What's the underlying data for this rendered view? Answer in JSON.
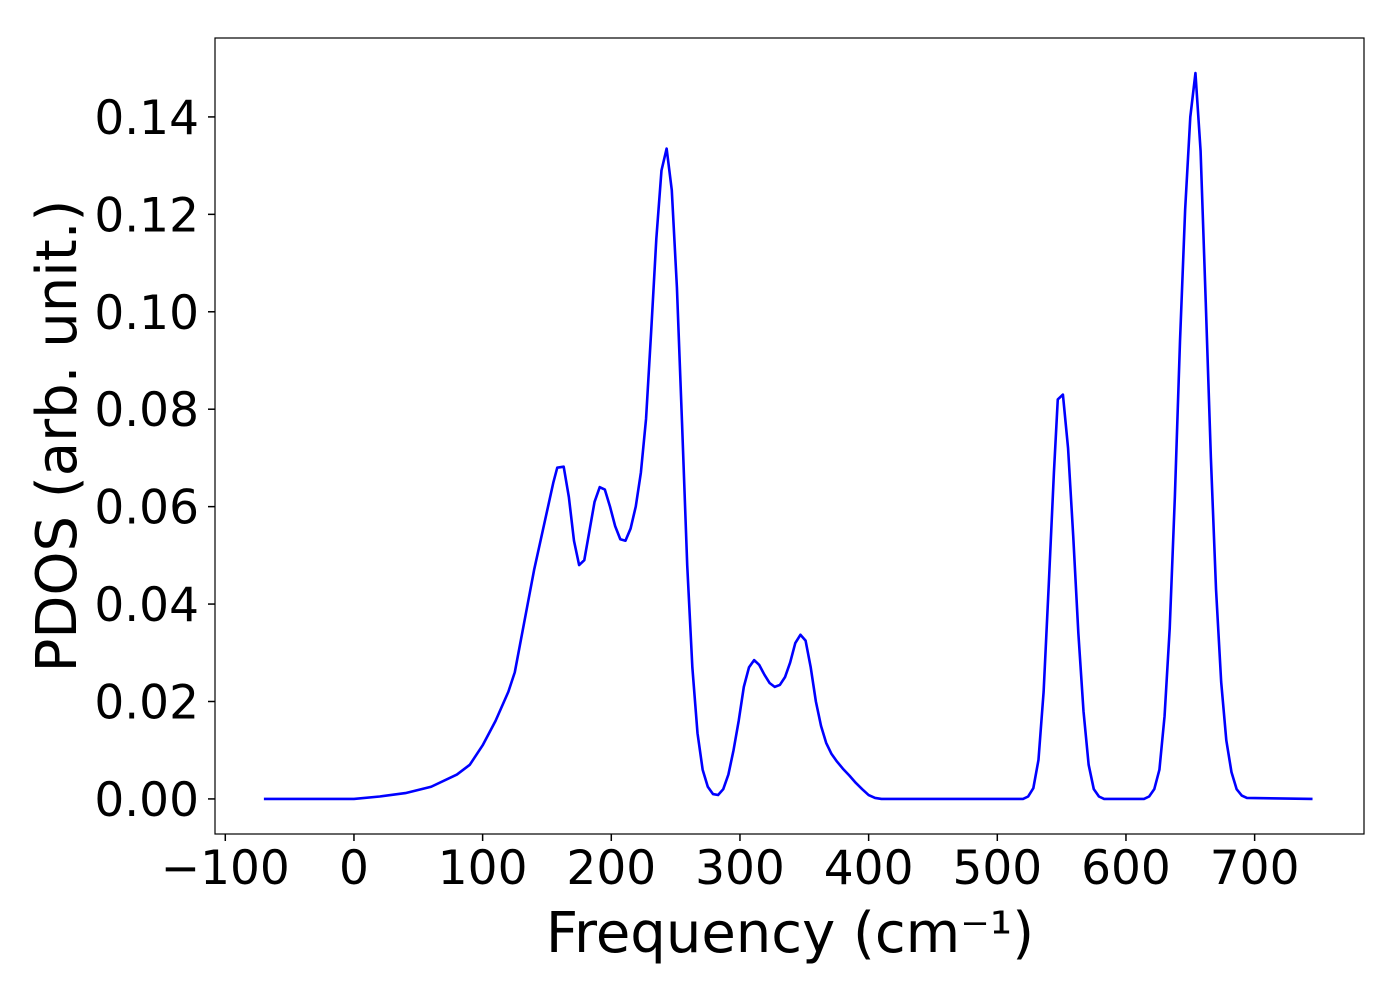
{
  "chart_data": {
    "type": "line",
    "xlabel": "Frequency (cm⁻¹)",
    "ylabel": "PDOS (arb. unit.)",
    "color": "#0000ff",
    "x": [
      -70,
      0,
      20,
      40,
      60,
      80,
      90,
      100,
      110,
      120,
      125,
      130,
      135,
      140,
      145,
      150,
      155,
      158,
      163,
      167,
      171,
      175,
      179,
      183,
      187,
      191,
      195,
      199,
      203,
      207,
      211,
      215,
      219,
      223,
      227,
      231,
      235,
      239,
      243,
      247,
      251,
      255,
      259,
      263,
      267,
      271,
      275,
      279,
      283,
      287,
      291,
      295,
      299,
      303,
      307,
      311,
      315,
      319,
      323,
      327,
      331,
      335,
      339,
      343,
      347,
      351,
      355,
      359,
      363,
      367,
      371,
      375,
      380,
      385,
      390,
      395,
      400,
      405,
      410,
      520,
      524,
      528,
      532,
      536,
      540,
      544,
      547,
      551,
      555,
      559,
      563,
      567,
      571,
      575,
      579,
      583,
      614,
      618,
      622,
      626,
      630,
      634,
      638,
      642,
      646,
      650,
      654,
      658,
      662,
      666,
      670,
      674,
      678,
      682,
      686,
      690,
      694,
      745
    ],
    "values": [
      0,
      0,
      0.0005,
      0.0012,
      0.0025,
      0.005,
      0.007,
      0.011,
      0.016,
      0.022,
      0.026,
      0.033,
      0.04,
      0.047,
      0.053,
      0.059,
      0.065,
      0.068,
      0.0682,
      0.062,
      0.053,
      0.048,
      0.049,
      0.055,
      0.061,
      0.064,
      0.0635,
      0.06,
      0.056,
      0.0533,
      0.053,
      0.0555,
      0.06,
      0.067,
      0.078,
      0.096,
      0.115,
      0.129,
      0.1335,
      0.125,
      0.105,
      0.077,
      0.048,
      0.027,
      0.0135,
      0.006,
      0.0025,
      0.001,
      0.0008,
      0.002,
      0.005,
      0.01,
      0.016,
      0.023,
      0.027,
      0.0285,
      0.0275,
      0.0255,
      0.0238,
      0.023,
      0.0234,
      0.025,
      0.028,
      0.032,
      0.0337,
      0.0325,
      0.027,
      0.02,
      0.015,
      0.0115,
      0.0093,
      0.0078,
      0.0062,
      0.0048,
      0.0033,
      0.002,
      0.0008,
      0.0002,
      0,
      0,
      0.0005,
      0.0022,
      0.008,
      0.022,
      0.044,
      0.067,
      0.082,
      0.083,
      0.072,
      0.054,
      0.034,
      0.018,
      0.007,
      0.002,
      0.0005,
      0,
      0,
      0.0005,
      0.002,
      0.006,
      0.017,
      0.035,
      0.062,
      0.094,
      0.121,
      0.14,
      0.149,
      0.133,
      0.102,
      0.07,
      0.043,
      0.024,
      0.012,
      0.0055,
      0.002,
      0.0007,
      0.0002,
      0
    ],
    "xlim": [
      -108,
      785
    ],
    "ylim": [
      -0.0072,
      0.1562
    ],
    "xticks": [
      {
        "value": -100,
        "label": "−100"
      },
      0,
      100,
      200,
      300,
      400,
      500,
      600,
      700
    ],
    "yticks": [
      {
        "value": 0,
        "label": "0.00"
      },
      {
        "value": 0.02,
        "label": "0.02"
      },
      {
        "value": 0.04,
        "label": "0.04"
      },
      {
        "value": 0.06,
        "label": "0.06"
      },
      {
        "value": 0.08,
        "label": "0.08"
      },
      {
        "value": 0.1,
        "label": "0.10"
      },
      {
        "value": 0.12,
        "label": "0.12"
      },
      {
        "value": 0.14,
        "label": "0.14"
      }
    ],
    "grid": false
  }
}
